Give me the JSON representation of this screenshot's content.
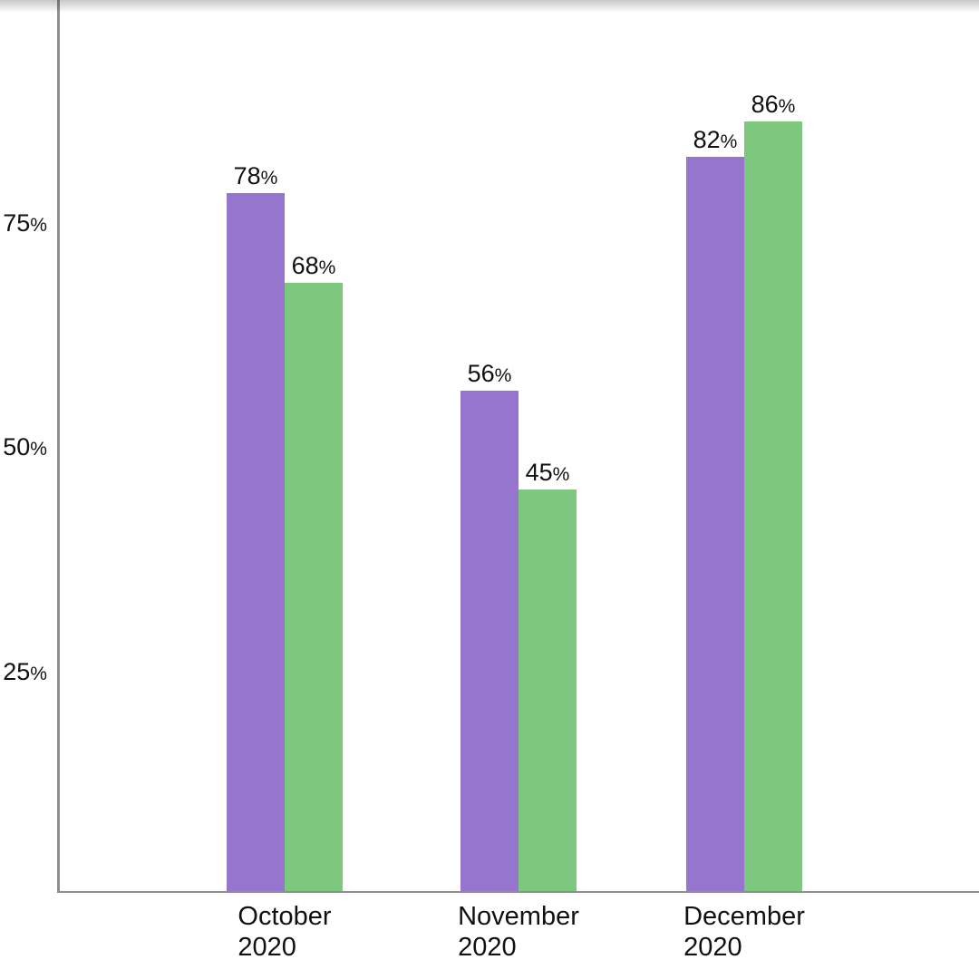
{
  "chart_data": {
    "type": "bar",
    "title": "",
    "categories": [
      {
        "month": "October",
        "year": "2020"
      },
      {
        "month": "November",
        "year": "2020"
      },
      {
        "month": "December",
        "year": "2020"
      }
    ],
    "series": [
      {
        "name": "purple",
        "color": "#9575cd",
        "values": [
          78,
          56,
          82
        ]
      },
      {
        "name": "green",
        "color": "#7dc77f",
        "values": [
          68,
          45,
          86
        ]
      }
    ],
    "value_suffix": "%",
    "y_ticks": [
      25,
      50,
      75
    ],
    "ylim": [
      0,
      100
    ],
    "grid": "off",
    "legend": "none",
    "axis_color": "#8f8f8f",
    "text_color": "#111111",
    "background_color": "#ffffff"
  }
}
